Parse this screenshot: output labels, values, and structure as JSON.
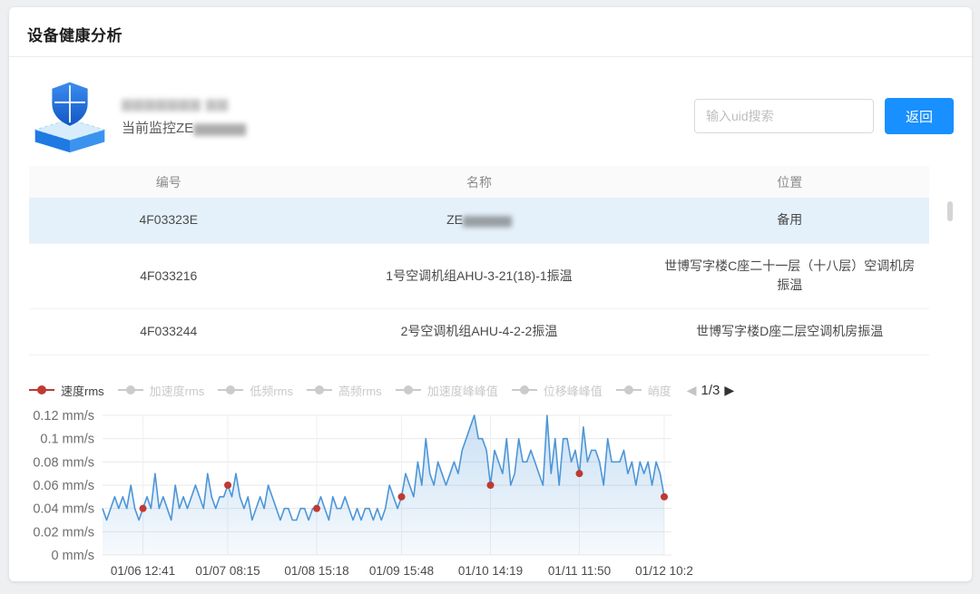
{
  "header": {
    "title": "设备健康分析"
  },
  "device": {
    "name_masked": "▆▆▆▆▆▆▆ ▆▆",
    "monitor_label": "当前监控",
    "monitor_value_prefix": "ZE",
    "monitor_value_masked": "▆▆▆▆▆"
  },
  "search": {
    "placeholder": "输入uid搜索"
  },
  "toolbar": {
    "back_label": "返回"
  },
  "table": {
    "columns": [
      "编号",
      "名称",
      "位置"
    ],
    "rows": [
      {
        "id": "4F03323E",
        "name_prefix": "ZE",
        "name_masked": "▆▆▆▆▆",
        "location": "备用",
        "selected": true
      },
      {
        "id": "4F033216",
        "name_prefix": "1号空调机组AHU-3-21(18)-1振温",
        "name_masked": "",
        "location": "世博写字楼C座二十一层（十八层）空调机房振温",
        "selected": false
      },
      {
        "id": "4F033244",
        "name_prefix": "2号空调机组AHU-4-2-2振温",
        "name_masked": "",
        "location": "世博写字楼D座二层空调机房振温",
        "selected": false
      }
    ]
  },
  "legend": {
    "items": [
      {
        "label": "速度rms",
        "active": true
      },
      {
        "label": "加速度rms",
        "active": false
      },
      {
        "label": "低频rms",
        "active": false
      },
      {
        "label": "高频rms",
        "active": false
      },
      {
        "label": "加速度峰峰值",
        "active": false
      },
      {
        "label": "位移峰峰值",
        "active": false
      },
      {
        "label": "峭度",
        "active": false
      }
    ],
    "active_color": "#bf3a32",
    "inactive_color": "#cbcbcb",
    "page": "1/3",
    "prev_icon": "◀",
    "next_icon": "▶"
  },
  "chart_data": {
    "type": "line",
    "series_name": "速度rms",
    "unit": "mm/s",
    "ylim": [
      0,
      0.12
    ],
    "ytick_labels": [
      "0 mm/s",
      "0.02 mm/s",
      "0.04 mm/s",
      "0.06 mm/s",
      "0.08 mm/s",
      "0.1 mm/s",
      "0.12 mm/s"
    ],
    "xticks": [
      {
        "label": "01/06 12:41",
        "index": 10
      },
      {
        "label": "01/07 08:15",
        "index": 31
      },
      {
        "label": "01/08 15:18",
        "index": 53
      },
      {
        "label": "01/09 15:48",
        "index": 74
      },
      {
        "label": "01/10 14:19",
        "index": 96
      },
      {
        "label": "01/11 11:50",
        "index": 118
      },
      {
        "label": "01/12 10:2",
        "index": 139
      }
    ],
    "values": [
      0.04,
      0.03,
      0.04,
      0.05,
      0.04,
      0.05,
      0.04,
      0.06,
      0.04,
      0.03,
      0.04,
      0.05,
      0.04,
      0.07,
      0.04,
      0.05,
      0.04,
      0.03,
      0.06,
      0.04,
      0.05,
      0.04,
      0.05,
      0.06,
      0.05,
      0.04,
      0.07,
      0.05,
      0.04,
      0.05,
      0.05,
      0.06,
      0.05,
      0.07,
      0.05,
      0.04,
      0.05,
      0.03,
      0.04,
      0.05,
      0.04,
      0.06,
      0.05,
      0.04,
      0.03,
      0.04,
      0.04,
      0.03,
      0.03,
      0.04,
      0.04,
      0.03,
      0.04,
      0.04,
      0.05,
      0.04,
      0.03,
      0.05,
      0.04,
      0.04,
      0.05,
      0.04,
      0.03,
      0.04,
      0.03,
      0.04,
      0.04,
      0.03,
      0.04,
      0.03,
      0.04,
      0.06,
      0.05,
      0.04,
      0.05,
      0.07,
      0.06,
      0.05,
      0.08,
      0.06,
      0.1,
      0.07,
      0.06,
      0.08,
      0.07,
      0.06,
      0.07,
      0.08,
      0.07,
      0.09,
      0.1,
      0.11,
      0.12,
      0.1,
      0.1,
      0.09,
      0.06,
      0.09,
      0.08,
      0.07,
      0.1,
      0.06,
      0.07,
      0.1,
      0.08,
      0.08,
      0.09,
      0.08,
      0.07,
      0.06,
      0.12,
      0.07,
      0.1,
      0.06,
      0.1,
      0.1,
      0.08,
      0.09,
      0.07,
      0.11,
      0.08,
      0.09,
      0.09,
      0.08,
      0.06,
      0.1,
      0.08,
      0.08,
      0.08,
      0.09,
      0.07,
      0.08,
      0.06,
      0.08,
      0.07,
      0.08,
      0.06,
      0.08,
      0.07,
      0.05
    ],
    "markers": [
      {
        "index": 10,
        "value": 0.04
      },
      {
        "index": 31,
        "value": 0.06
      },
      {
        "index": 53,
        "value": 0.04
      },
      {
        "index": 74,
        "value": 0.05
      },
      {
        "index": 96,
        "value": 0.06
      },
      {
        "index": 118,
        "value": 0.07
      },
      {
        "index": 139,
        "value": 0.05
      }
    ],
    "line_color": "#4d96d8",
    "area_color": "#4d96d8",
    "marker_color": "#bf3a32",
    "grid": true,
    "legend_position": "top-left"
  }
}
